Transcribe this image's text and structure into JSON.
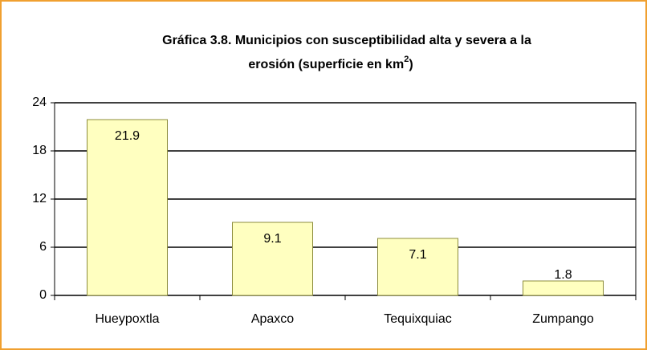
{
  "chart_data": {
    "type": "bar",
    "title": [
      "Gráfica 3.8. Municipios con susceptibilidad alta y severa a la",
      "erosión (superficie en km",
      "2",
      ")"
    ],
    "categories": [
      "Hueypoxtla",
      "Apaxco",
      "Tequixquiac",
      "Zumpango"
    ],
    "values": [
      21.9,
      9.1,
      7.1,
      1.8
    ],
    "color": "#ffffc0",
    "ylim": [
      0,
      24
    ],
    "yticks": [
      0,
      6,
      12,
      18,
      24
    ],
    "grid": true
  }
}
